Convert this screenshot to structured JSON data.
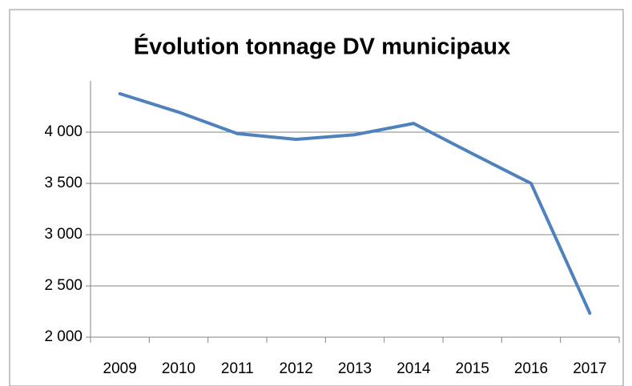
{
  "chart_data": {
    "type": "line",
    "title": "Évolution tonnage DV municipaux",
    "categories": [
      "2009",
      "2010",
      "2011",
      "2012",
      "2013",
      "2014",
      "2015",
      "2016",
      "2017"
    ],
    "series": [
      {
        "color": "#4f81bd",
        "values": [
          4375,
          4195,
          3985,
          3930,
          3975,
          4085,
          3790,
          3500,
          2234
        ]
      }
    ],
    "ylim": [
      2000,
      4500
    ],
    "yticks": [
      {
        "value": 2000,
        "label": "2 000"
      },
      {
        "value": 2500,
        "label": "2 500"
      },
      {
        "value": 3000,
        "label": "3 000"
      },
      {
        "value": 3500,
        "label": "3 500"
      },
      {
        "value": 4000,
        "label": "4 000"
      }
    ],
    "grid": true
  }
}
